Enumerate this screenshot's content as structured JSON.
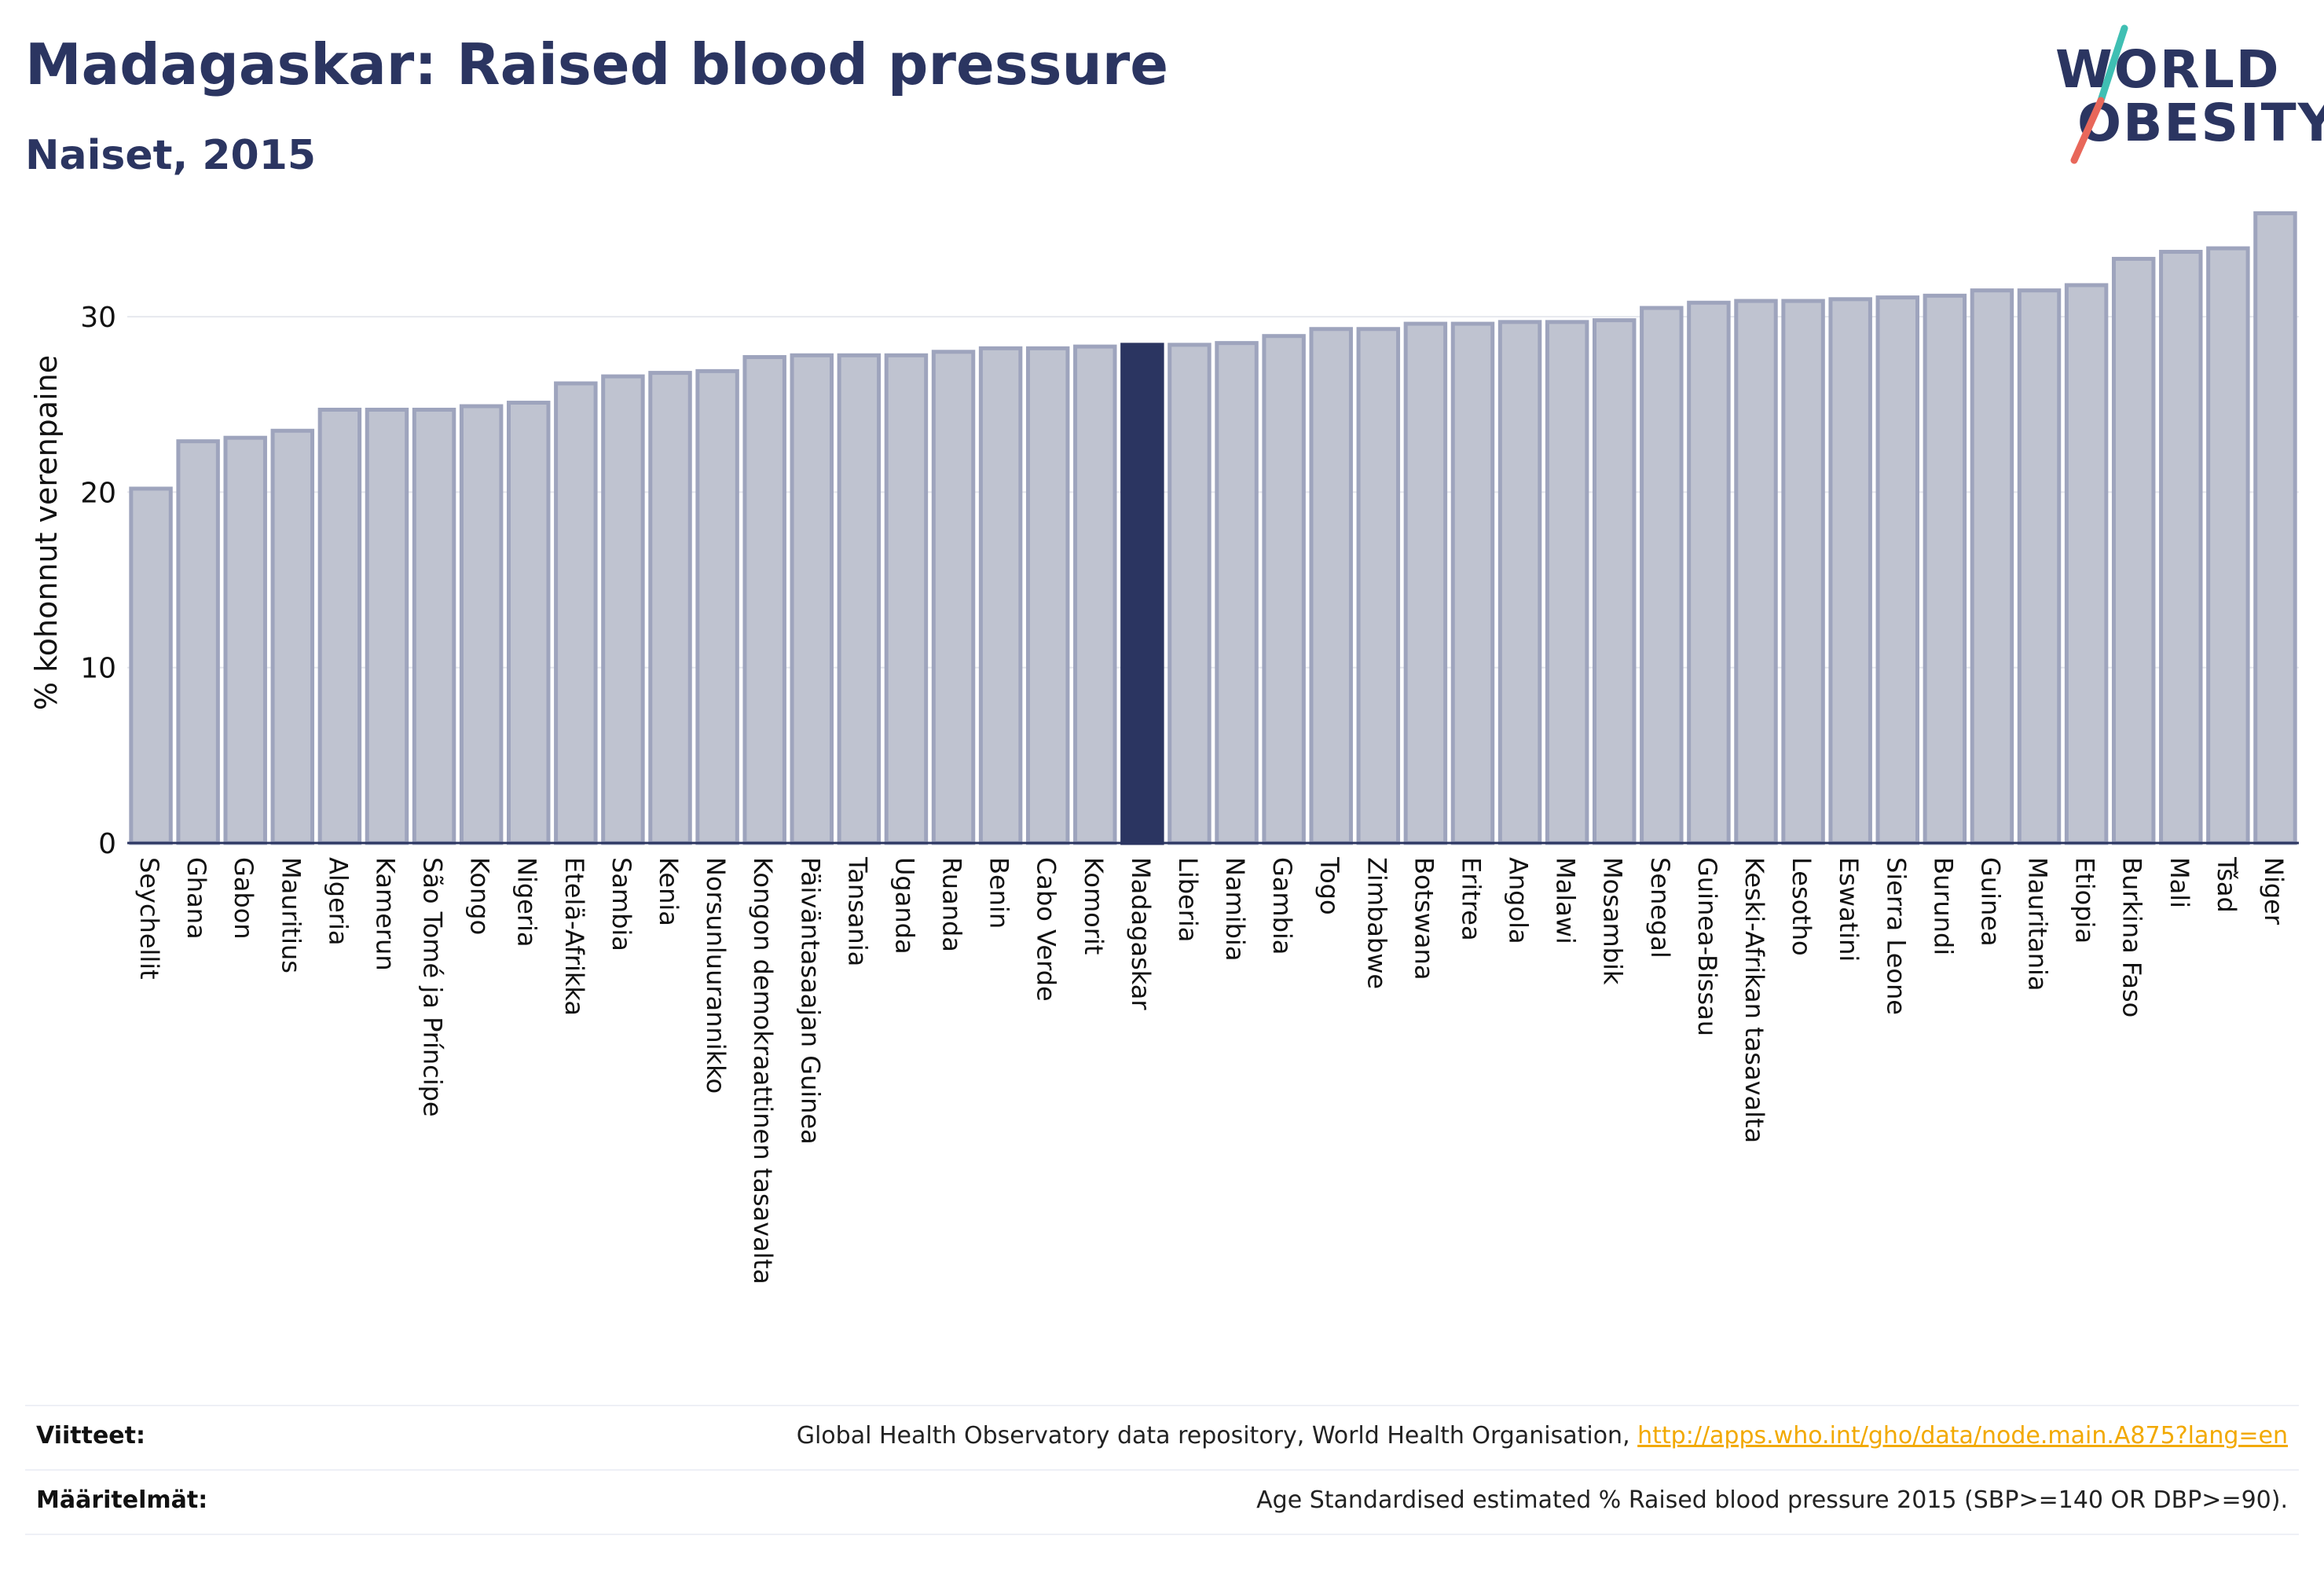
{
  "header": {
    "title": "Madagaskar: Raised blood pressure",
    "subtitle": "Naiset, 2015"
  },
  "logo": {
    "line1": "WORLD",
    "line2": "OBESITY",
    "colors": {
      "text": "#2b3561",
      "slash_top": "#3fbfb3",
      "slash_bottom": "#e8675a"
    }
  },
  "chart_data": {
    "type": "bar",
    "title": "Madagaskar: Raised blood pressure",
    "subtitle": "Naiset, 2015",
    "ylabel": "% kohonnut verenpaine",
    "xlabel": "",
    "ylim": [
      0,
      36.5
    ],
    "yticks": [
      0,
      10,
      20,
      30
    ],
    "grid": true,
    "highlight": "Madagaskar",
    "colors": {
      "bar": "#bfc3d0",
      "bar_border": "#9ea4bd",
      "highlight": "#2b3561"
    },
    "categories": [
      "Seychellit",
      "Ghana",
      "Gabon",
      "Mauritius",
      "Algeria",
      "Kamerun",
      "São Tomé ja Príncipe",
      "Kongo",
      "Nigeria",
      "Etelä-Afrikka",
      "Sambia",
      "Kenia",
      "Norsunluurannikko",
      "Kongon demokraattinen tasavalta",
      "Päiväntasaajan Guinea",
      "Tansania",
      "Uganda",
      "Ruanda",
      "Benin",
      "Cabo Verde",
      "Komorit",
      "Madagaskar",
      "Liberia",
      "Namibia",
      "Gambia",
      "Togo",
      "Zimbabwe",
      "Botswana",
      "Eritrea",
      "Angola",
      "Malawi",
      "Mosambik",
      "Senegal",
      "Guinea-Bissau",
      "Keski-Afrikan tasavalta",
      "Lesotho",
      "Eswatini",
      "Sierra Leone",
      "Burundi",
      "Guinea",
      "Mauritania",
      "Etiopia",
      "Burkina Faso",
      "Mali",
      "Tšad",
      "Niger"
    ],
    "values": [
      20.2,
      22.9,
      23.1,
      23.5,
      24.7,
      24.7,
      24.7,
      24.9,
      25.1,
      26.2,
      26.6,
      26.8,
      26.9,
      27.7,
      27.8,
      27.8,
      27.8,
      28.0,
      28.2,
      28.2,
      28.3,
      28.4,
      28.4,
      28.5,
      28.9,
      29.3,
      29.3,
      29.6,
      29.6,
      29.7,
      29.7,
      29.8,
      30.5,
      30.8,
      30.9,
      30.9,
      31.0,
      31.1,
      31.2,
      31.5,
      31.5,
      31.8,
      33.3,
      33.7,
      33.9,
      35.9
    ]
  },
  "footer": {
    "references_label": "Viitteet:",
    "references_text": "Global Health Observatory data repository, World Health Organisation, ",
    "references_link": "http://apps.who.int/gho/data/node.main.A875?lang=en",
    "definitions_label": "Määritelmät:",
    "definitions_text": "Age Standardised estimated % Raised blood pressure 2015 (SBP>=140 OR DBP>=90)."
  }
}
